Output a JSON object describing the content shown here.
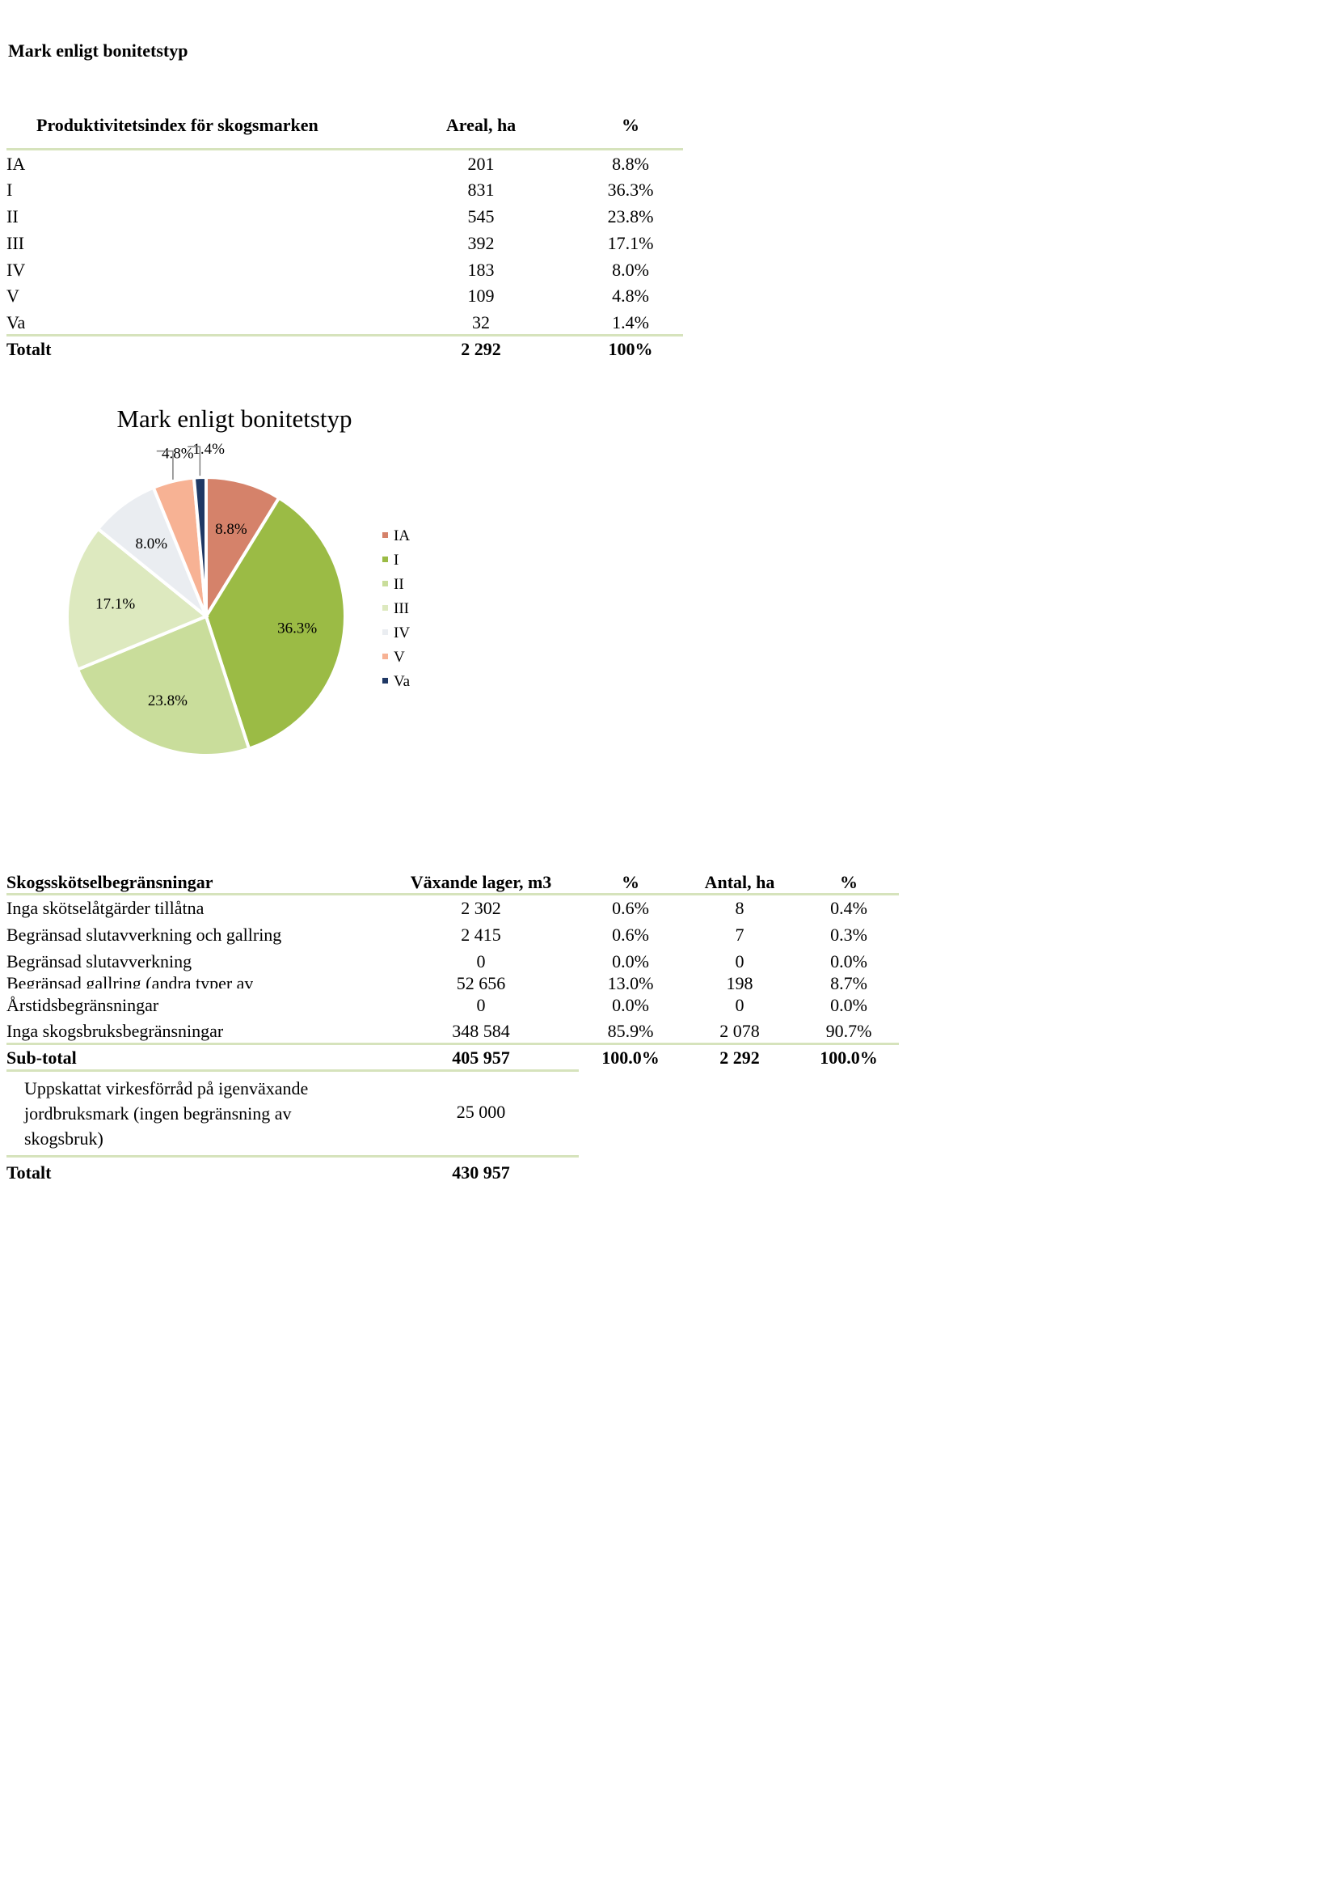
{
  "section_title": "Mark enligt bonitetstyp",
  "table1": {
    "headers": [
      "Produktivitetsindex för skogsmarken",
      "Areal, ha",
      "%"
    ],
    "rows": [
      [
        "IA",
        "201",
        "8.8%"
      ],
      [
        "I",
        "831",
        "36.3%"
      ],
      [
        "II",
        "545",
        "23.8%"
      ],
      [
        "III",
        "392",
        "17.1%"
      ],
      [
        "IV",
        "183",
        "8.0%"
      ],
      [
        "V",
        "109",
        "4.8%"
      ],
      [
        "Va",
        "32",
        "1.4%"
      ]
    ],
    "total": [
      "Totalt",
      "2 292",
      "100%"
    ]
  },
  "chart_data": {
    "type": "pie",
    "title": "Mark enligt bonitetstyp",
    "categories": [
      "IA",
      "I",
      "II",
      "III",
      "IV",
      "V",
      "Va"
    ],
    "values": [
      8.8,
      36.3,
      23.8,
      17.1,
      8.0,
      4.8,
      1.4
    ],
    "labels": [
      "8.8%",
      "36.3%",
      "23.8%",
      "17.1%",
      "8.0%",
      "4.8%",
      "1.4%"
    ],
    "colors": [
      "#d5826a",
      "#9bbb45",
      "#c9dd9b",
      "#dde9bf",
      "#eaedf1",
      "#f7b294",
      "#1f3864"
    ],
    "legend": "right"
  },
  "table2": {
    "headers": [
      "Skogsskötselbegränsningar",
      "Växande lager, m3",
      "%",
      "Antal, ha",
      "%"
    ],
    "rows": [
      [
        "Inga skötselåtgärder tillåtna",
        "2 302",
        "0.6%",
        "8",
        "0.4%"
      ],
      [
        "Begränsad slutavverkning och gallring",
        "2 415",
        "0.6%",
        "7",
        "0.3%"
      ],
      [
        "Begränsad slutavverkning",
        "0",
        "0.0%",
        "0",
        "0.0%"
      ],
      [
        "Begränsad gallring (andra typer av",
        "52 656",
        "13.0%",
        "198",
        "8.7%"
      ],
      [
        "Årstidsbegränsningar",
        "0",
        "0.0%",
        "0",
        "0.0%"
      ],
      [
        "Inga skogsbruksbegränsningar",
        "348 584",
        "85.9%",
        "2 078",
        "90.7%"
      ]
    ],
    "subtotal": [
      "Sub-total",
      "405 957",
      "100.0%",
      "2 292",
      "100.0%"
    ],
    "extra": [
      "Uppskattat virkesförråd på igenväxande jordbruksmark (ingen begränsning av skogsbruk)",
      "25 000"
    ],
    "total": [
      "Totalt",
      "430 957"
    ]
  }
}
